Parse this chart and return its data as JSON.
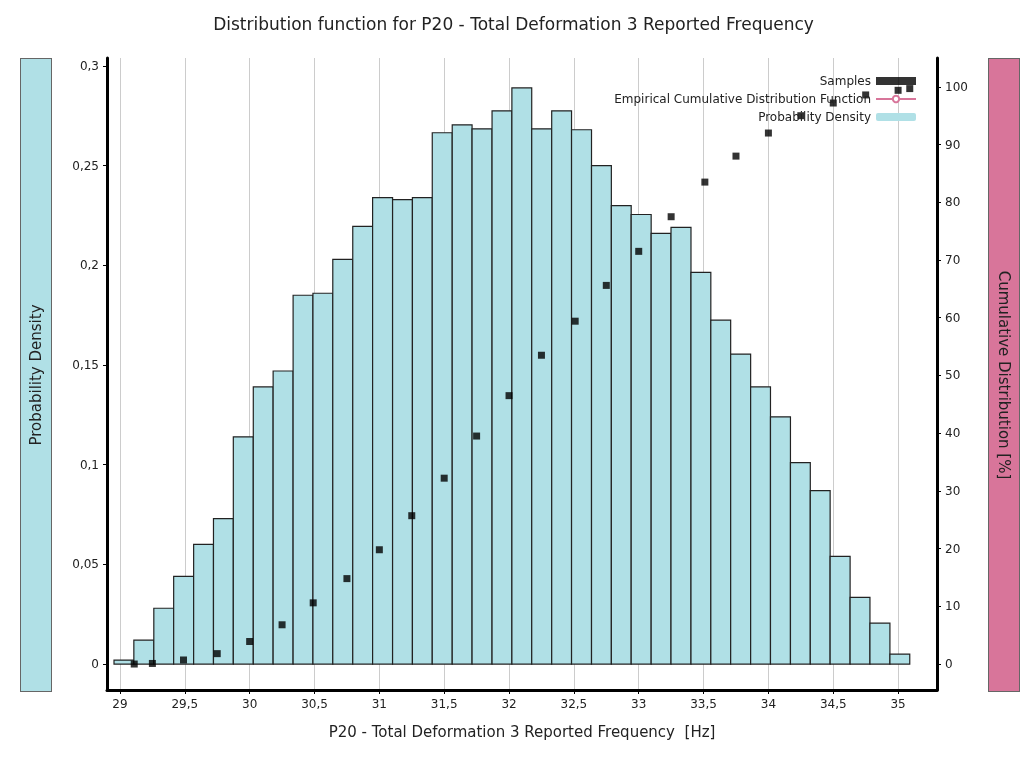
{
  "chart_data": {
    "type": "histogram",
    "title": "Distribution function for P20 - Total Deformation 3 Reported Frequency",
    "xlabel": "P20 - Total Deformation 3 Reported Frequency  [Hz]",
    "ylabel": "Probability Density",
    "y2label": "Cumulative Distribution [%]",
    "bins": [
      28.954,
      29.107,
      29.261,
      29.414,
      29.568,
      29.721,
      29.874,
      30.028,
      30.181,
      30.335,
      30.488,
      30.641,
      30.795,
      30.948,
      31.102,
      31.255,
      31.408,
      31.562,
      31.715,
      31.869,
      32.022,
      32.175,
      32.329,
      32.482,
      32.636,
      32.789,
      32.942,
      33.096,
      33.249,
      33.403,
      33.556,
      33.709,
      33.863,
      34.016,
      34.17,
      34.323,
      34.476,
      34.63,
      34.783,
      34.937,
      35.09
    ],
    "series": [
      {
        "name": "Samples",
        "type": "scatter",
        "axis": "y2",
        "color": "#000000",
        "x": [
          29.11,
          29.25,
          29.49,
          29.75,
          30.0,
          30.25,
          30.49,
          30.75,
          31.0,
          31.25,
          31.5,
          31.75,
          32.0,
          32.25,
          32.51,
          32.75,
          33.0,
          33.25,
          33.51,
          33.75,
          34.0,
          34.25,
          34.5,
          34.75,
          35.0,
          35.09
        ],
        "values": [
          0,
          0.1,
          0.7,
          1.8,
          3.9,
          6.8,
          10.6,
          14.8,
          19.8,
          25.7,
          32.2,
          39.5,
          46.5,
          53.5,
          59.4,
          65.6,
          71.5,
          77.5,
          83.5,
          88,
          92,
          95,
          97.2,
          98.6,
          99.4,
          99.7
        ]
      },
      {
        "name": "Empirical Cumulative Distribution Function",
        "type": "line",
        "axis": "y2",
        "color": "#d8759a"
      },
      {
        "name": "Probability Density",
        "type": "histogram",
        "color": "#b0e0e6",
        "values": [
          0.002,
          0.012,
          0.028,
          0.044,
          0.06,
          0.073,
          0.114,
          0.139,
          0.147,
          0.185,
          0.186,
          0.203,
          0.2195,
          0.234,
          0.233,
          0.234,
          0.2665,
          0.2705,
          0.2685,
          0.2775,
          0.289,
          0.2685,
          0.2775,
          0.268,
          0.25,
          0.23,
          0.2255,
          0.216,
          0.219,
          0.1965,
          0.1725,
          0.1555,
          0.139,
          0.124,
          0.101,
          0.087,
          0.054,
          0.0335,
          0.0205,
          0.005
        ]
      }
    ],
    "xlim": [
      28.9,
      35.3
    ],
    "xticks": [
      29,
      {
        "value": 29.5,
        "label": "29,5"
      },
      30,
      {
        "value": 30.5,
        "label": "30,5"
      },
      31,
      {
        "value": 31.5,
        "label": "31,5"
      },
      32,
      {
        "value": 32.5,
        "label": "32,5"
      },
      33,
      {
        "value": 33.5,
        "label": "33,5"
      },
      34,
      {
        "value": 34.5,
        "label": "34,5"
      },
      35
    ],
    "ylim": [
      -0.013,
      0.304
    ],
    "yticks": [
      0,
      {
        "value": 0.05,
        "label": "0,05"
      },
      {
        "value": 0.1,
        "label": "0,1"
      },
      {
        "value": 0.15,
        "label": "0,15"
      },
      {
        "value": 0.2,
        "label": "0,2"
      },
      {
        "value": 0.25,
        "label": "0,25"
      },
      {
        "value": 0.3,
        "label": "0,3"
      }
    ],
    "y2lim": [
      -4.5,
      105
    ],
    "y2ticks": [
      0,
      10,
      20,
      30,
      40,
      50,
      60,
      70,
      80,
      90,
      100
    ],
    "grid": "x",
    "legend": "top right",
    "marker": "square"
  }
}
